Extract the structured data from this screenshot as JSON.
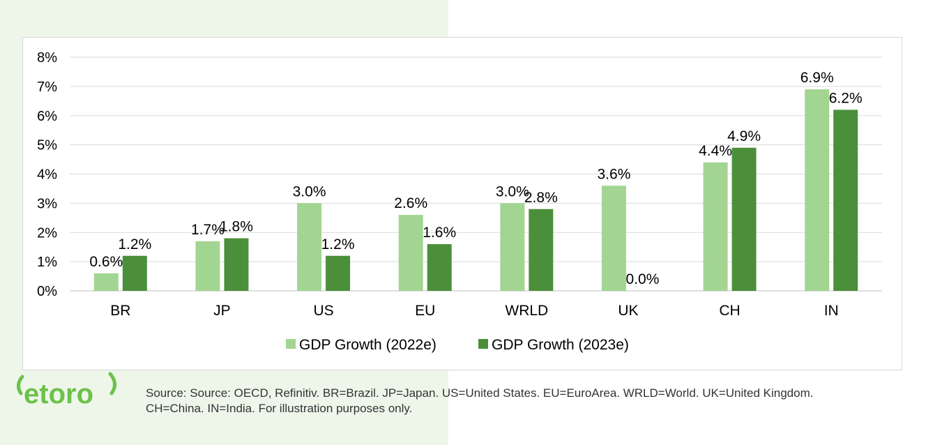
{
  "chart_data": {
    "type": "bar",
    "categories": [
      "BR",
      "JP",
      "US",
      "EU",
      "WRLD",
      "UK",
      "CH",
      "IN"
    ],
    "series": [
      {
        "name": "GDP Growth (2022e)",
        "values": [
          0.6,
          1.7,
          3.0,
          2.6,
          3.0,
          3.6,
          4.4,
          6.9
        ],
        "color": "#a2d592"
      },
      {
        "name": "GDP Growth (2023e)",
        "values": [
          1.2,
          1.8,
          1.2,
          1.6,
          2.8,
          0.0,
          4.9,
          6.2
        ],
        "color": "#4c8f3b"
      }
    ],
    "data_labels": [
      [
        "0.6%",
        "1.7%",
        "3.0%",
        "2.6%",
        "3.0%",
        "3.6%",
        "4.4%",
        "6.9%"
      ],
      [
        "1.2%",
        "1.8%",
        "1.2%",
        "1.6%",
        "2.8%",
        "0.0%",
        "4.9%",
        "6.2%"
      ]
    ],
    "y_ticks": [
      "0%",
      "1%",
      "2%",
      "3%",
      "4%",
      "5%",
      "6%",
      "7%",
      "8%"
    ],
    "ylim": [
      0,
      8
    ],
    "grid": true,
    "legend_position": "bottom",
    "title": "",
    "xlabel": "",
    "ylabel": ""
  },
  "logo": {
    "text": "etoro",
    "color": "#6cc24a"
  },
  "footer": {
    "source_line1": "Source: Source: OECD, Refinitiv. BR=Brazil. JP=Japan. US=United States. EU=EuroArea. WRLD=World. UK=United Kingdom.",
    "source_line2": "CH=China. IN=India. For illustration purposes only."
  }
}
